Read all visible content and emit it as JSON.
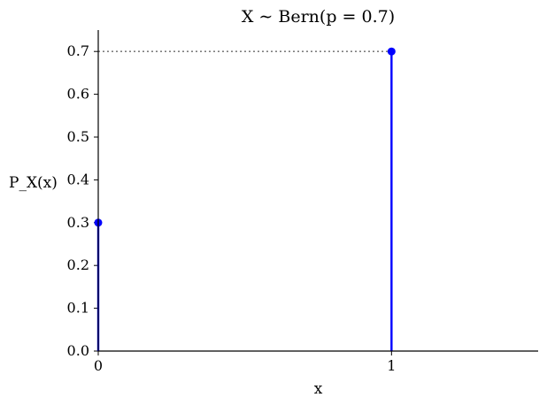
{
  "chart_data": {
    "type": "stem",
    "title": "X ∼ Bern(p = 0.7)",
    "xlabel": "x",
    "ylabel": "P_X(x)",
    "xlim": [
      0,
      1.5
    ],
    "ylim": [
      0,
      0.75
    ],
    "xticks": [
      0,
      1
    ],
    "yticks": [
      0.0,
      0.1,
      0.2,
      0.3,
      0.4,
      0.5,
      0.6,
      0.7
    ],
    "series": [
      {
        "x": [
          0,
          1
        ],
        "y": [
          0.3,
          0.7
        ]
      }
    ],
    "reference_line": {
      "y": 0.7,
      "style": "dotted",
      "color": "#7f7f7f"
    },
    "colors": {
      "stem": "#0000ff",
      "axis": "#000000"
    },
    "grid": false,
    "spines": [
      "left",
      "bottom"
    ]
  }
}
